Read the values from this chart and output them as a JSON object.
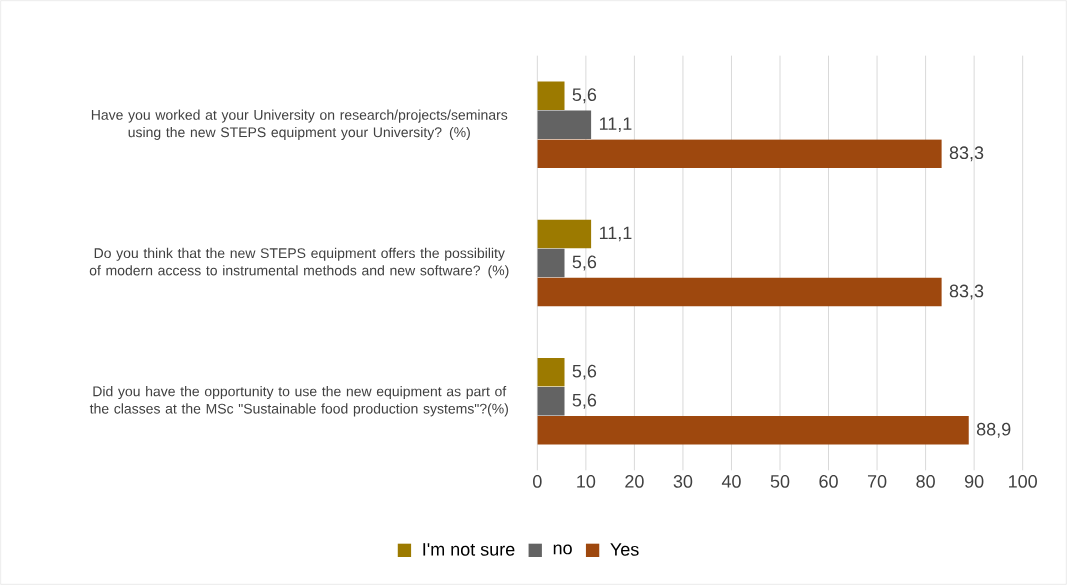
{
  "chart_data": {
    "type": "bar",
    "orientation": "horizontal",
    "categories": [
      "Have you worked at your University on research/projects/seminars using the new STEPS equipment your University? (%)",
      "Do you think that the new STEPS equipment offers the possibility of modern access to instrumental methods and new software? (%)",
      "Did you have the opportunity to use the new equipment as part of the classes at the MSc \"Sustainable food production systems\"?(%)"
    ],
    "series": [
      {
        "name": "I'm not sure",
        "color": "#9c7a00",
        "values": [
          5.6,
          11.1,
          5.6
        ],
        "value_labels": [
          "5,6",
          "11,1",
          "5,6"
        ]
      },
      {
        "name": "no",
        "color": "#636363",
        "values": [
          11.1,
          5.6,
          5.6
        ],
        "value_labels": [
          "11,1",
          "5,6",
          "5,6"
        ]
      },
      {
        "name": "Yes",
        "color": "#9e480e",
        "values": [
          83.3,
          83.3,
          88.9
        ],
        "value_labels": [
          "83,3",
          "83,3",
          "88,9"
        ]
      }
    ],
    "xlim": [
      0,
      100
    ],
    "xticks": [
      0,
      10,
      20,
      30,
      40,
      50,
      60,
      70,
      80,
      90,
      100
    ],
    "grid": "x",
    "legend": "bottom"
  }
}
